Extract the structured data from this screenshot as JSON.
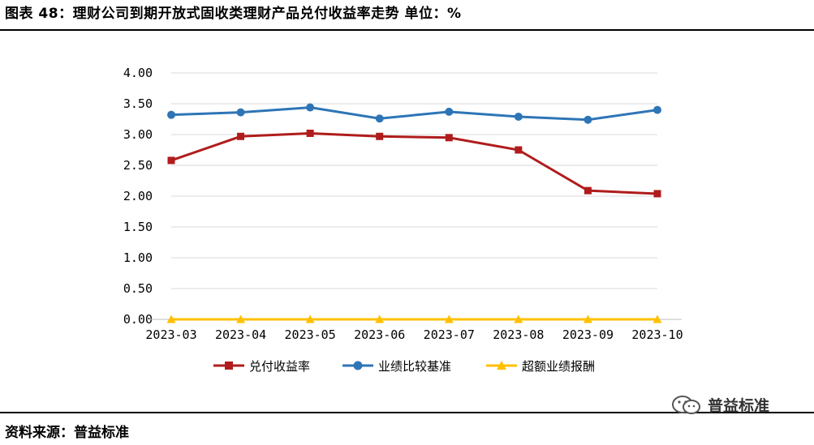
{
  "header": {
    "title": "图表 48：理财公司到期开放式固收类理财产品兑付收益率走势    单位：%"
  },
  "footer": {
    "source": "资料来源：普益标准"
  },
  "watermark": {
    "text": "普益标准",
    "icon": "wechat-icon"
  },
  "chart_data": {
    "type": "line",
    "categories": [
      "2023-03",
      "2023-04",
      "2023-05",
      "2023-06",
      "2023-07",
      "2023-08",
      "2023-09",
      "2023-10"
    ],
    "ylim": [
      0,
      4
    ],
    "yticks": [
      "0.00",
      "0.50",
      "1.00",
      "1.50",
      "2.00",
      "2.50",
      "3.00",
      "3.50",
      "4.00"
    ],
    "grid": true,
    "legend_position": "bottom",
    "series": [
      {
        "name": "兑付收益率",
        "color": "#b01c1c",
        "marker": "square",
        "values": [
          2.58,
          2.97,
          3.02,
          2.97,
          2.95,
          2.75,
          2.09,
          2.04
        ]
      },
      {
        "name": "业绩比较基准",
        "color": "#2e75b6",
        "marker": "circle",
        "values": [
          3.32,
          3.36,
          3.44,
          3.26,
          3.37,
          3.29,
          3.24,
          3.4
        ]
      },
      {
        "name": "超额业绩报酬",
        "color": "#ffc000",
        "marker": "triangle",
        "values": [
          0,
          0,
          0,
          0,
          0,
          0,
          0,
          0
        ]
      }
    ]
  }
}
